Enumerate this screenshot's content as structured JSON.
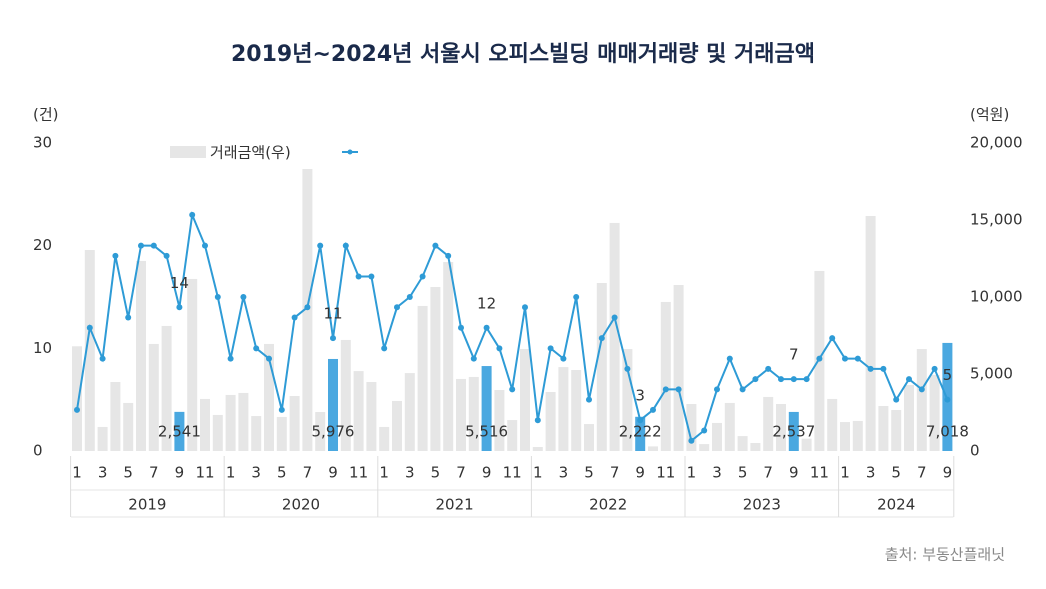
{
  "chart_data": {
    "type": "combo",
    "title": "2019년~2024년 서울시 오피스빌딩 매매거래량 및 거래금액",
    "y_label": "(건)",
    "y2_label": "(억원)",
    "source": "출처: 부동산플래닛",
    "categories": [
      "1",
      null,
      "3",
      null,
      "5",
      null,
      "7",
      null,
      "9",
      null,
      "11",
      null,
      "1",
      null,
      "3",
      null,
      "5",
      null,
      "7",
      null,
      "9",
      null,
      "11",
      null,
      "1",
      null,
      "3",
      null,
      "5",
      null,
      "7",
      null,
      "9",
      null,
      "11",
      null,
      "1",
      null,
      "3",
      null,
      "5",
      null,
      "7",
      null,
      "9",
      null,
      "11",
      null,
      "1",
      null,
      "3",
      null,
      "5",
      null,
      "7",
      null,
      "9",
      null,
      "11",
      null,
      "1",
      null,
      "3",
      null,
      "5",
      null,
      "7",
      null,
      "9"
    ],
    "year_labels": [
      "2019",
      "2020",
      "2021",
      "2022",
      "2023",
      "2024"
    ],
    "ylim": [
      0,
      30
    ],
    "yticks": [
      0,
      10,
      20,
      30
    ],
    "y2lim": [
      0,
      20000
    ],
    "y2ticks": [
      0,
      {
        "value": 5000,
        "label": "5,000"
      },
      {
        "value": 10000,
        "label": "10,000"
      },
      {
        "value": 15000,
        "label": "15,000"
      },
      {
        "value": 20000,
        "label": "20,000"
      }
    ],
    "series": [
      {
        "name": "거래금액(우)",
        "type": "bar",
        "axis": "y2",
        "color": "#e6e6e6",
        "highlight_color": "#4aa8e0",
        "values": [
          6800,
          13050,
          1560,
          4480,
          3120,
          12340,
          6950,
          8120,
          2541,
          11170,
          3380,
          2340,
          3640,
          3770,
          2270,
          6950,
          2210,
          3570,
          18310,
          2530,
          5976,
          7210,
          5190,
          4480,
          1560,
          3250,
          5060,
          9420,
          10650,
          12270,
          4680,
          4810,
          5516,
          3960,
          2010,
          6620,
          260,
          3830,
          5450,
          5260,
          1750,
          10910,
          14810,
          6620,
          2222,
          300,
          9680,
          10780,
          3050,
          450,
          1820,
          3120,
          970,
          520,
          3510,
          3050,
          2537,
          800,
          11690,
          3380,
          1880,
          1950,
          15260,
          2920,
          2660,
          4290,
          6620,
          4940,
          7018
        ],
        "value_labels": [
          null,
          null,
          null,
          null,
          null,
          null,
          null,
          null,
          "2,541",
          null,
          null,
          null,
          null,
          null,
          null,
          null,
          null,
          null,
          null,
          null,
          "5,976",
          null,
          null,
          null,
          null,
          null,
          null,
          null,
          null,
          null,
          null,
          null,
          "5,516",
          null,
          null,
          null,
          null,
          null,
          null,
          null,
          null,
          null,
          null,
          null,
          "2,222",
          null,
          null,
          null,
          null,
          null,
          null,
          null,
          null,
          null,
          null,
          null,
          "2,537",
          null,
          null,
          null,
          null,
          null,
          null,
          null,
          null,
          null,
          null,
          null,
          "7,018"
        ]
      },
      {
        "type": "line",
        "color": "#2e9bd6",
        "values": [
          4,
          12,
          9,
          19,
          13,
          20,
          20,
          19,
          14,
          23,
          20,
          15,
          9,
          15,
          10,
          9,
          4,
          13,
          14,
          20,
          11,
          20,
          17,
          17,
          10,
          14,
          15,
          17,
          20,
          19,
          12,
          9,
          12,
          10,
          6,
          14,
          3,
          10,
          9,
          15,
          5,
          11,
          13,
          8,
          3,
          4,
          6,
          6,
          1,
          2,
          6,
          9,
          6,
          7,
          8,
          7,
          7,
          7,
          9,
          11,
          9,
          9,
          8,
          8,
          5,
          7,
          6,
          8,
          5
        ]
      }
    ]
  }
}
